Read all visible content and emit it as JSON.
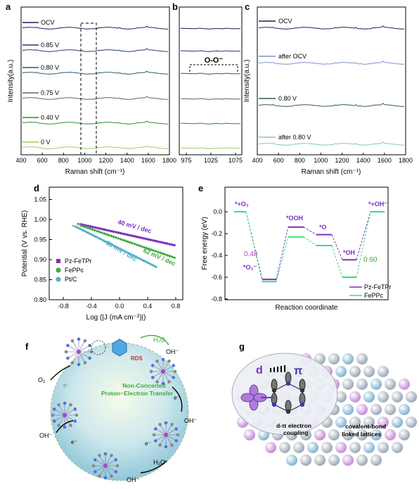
{
  "panels": {
    "a": {
      "label": "a",
      "ylabel": "Intensity(a.u.)",
      "xlabel": "Raman shift (cm⁻¹)",
      "xticks": [
        "400",
        "600",
        "800",
        "1000",
        "1200",
        "1400",
        "1600",
        "1800"
      ],
      "spectra": [
        {
          "label": "OCV",
          "color": "#1b1f5e"
        },
        {
          "label": "0.85 V",
          "color": "#213a73"
        },
        {
          "label": "0.80 V",
          "color": "#2c5a70"
        },
        {
          "label": "0.75 V",
          "color": "#4e6e5a"
        },
        {
          "label": "0.40 V",
          "color": "#2e8b2e"
        },
        {
          "label": "0 V",
          "color": "#98cf6a"
        }
      ]
    },
    "b": {
      "label": "b",
      "annotation": "O-O⁻",
      "xticks": [
        "975",
        "1025",
        "1075"
      ]
    },
    "c": {
      "label": "c",
      "ylabel": "Intensity(a.u.)",
      "xlabel": "Raman shift (cm⁻¹)",
      "xticks": [
        "400",
        "600",
        "800",
        "1000",
        "1200",
        "1400",
        "1600",
        "1800"
      ],
      "spectra": [
        {
          "label": "OCV",
          "color": "#1b1f5e"
        },
        {
          "label": "after OCV",
          "color": "#7f8fd0"
        },
        {
          "label": "0.80 V",
          "color": "#2e5d57"
        },
        {
          "label": "after 0.80 V",
          "color": "#7fc8c0"
        }
      ]
    },
    "d": {
      "label": "d",
      "ylabel": "Potential (V vs. RHE)",
      "xlabel": "Log (|J (mA cm⁻²)|)",
      "xticks": [
        "-0.8",
        "-0.4",
        "0.0",
        "0.4",
        "0.8"
      ],
      "yticks": [
        "0.80",
        "0.85",
        "0.90",
        "0.95",
        "1.00",
        "1.05"
      ],
      "legend": [
        "Pz-FeTPr",
        "FePPc",
        "Pt/C"
      ],
      "slopes": [
        "40 mV / dec",
        "62 mV / dec",
        "80 mV / dec"
      ]
    },
    "e": {
      "label": "e",
      "ylabel": "Free energy (eV)",
      "xlabel": "Reaction coordinate",
      "yticks": [
        "0.0",
        "-0.2",
        "-0.4",
        "-0.6",
        "-0.8"
      ],
      "states": [
        "*+O₂",
        "*O₂⁻",
        "*OOH",
        "*O",
        "*OH",
        "*+OH⁻"
      ],
      "values_pz": [
        "0.48"
      ],
      "values_fe": [
        "0.60"
      ],
      "legend": [
        "Pz-FeTPr",
        "FePPc"
      ]
    },
    "f": {
      "label": "f",
      "h2o": "H₂O",
      "oh": "OH⁻",
      "rds": "RDS",
      "o2": "O₂",
      "e": "e⁻",
      "center_l1": "Non-Concerted",
      "center_l2": "Proton−Electron Transfer",
      "h2o_bottom": "H₂O"
    },
    "g": {
      "label": "g",
      "d": "d",
      "pi": "π",
      "coupling_l1": "d-π electron",
      "coupling_l2": "coupling",
      "lattice_l1": "covalent-bond",
      "lattice_l2": "linked lattices"
    }
  },
  "colors": {
    "pz": "#7b2fbe",
    "fe": "#3daa3d",
    "pt": "#4fb0c6"
  }
}
